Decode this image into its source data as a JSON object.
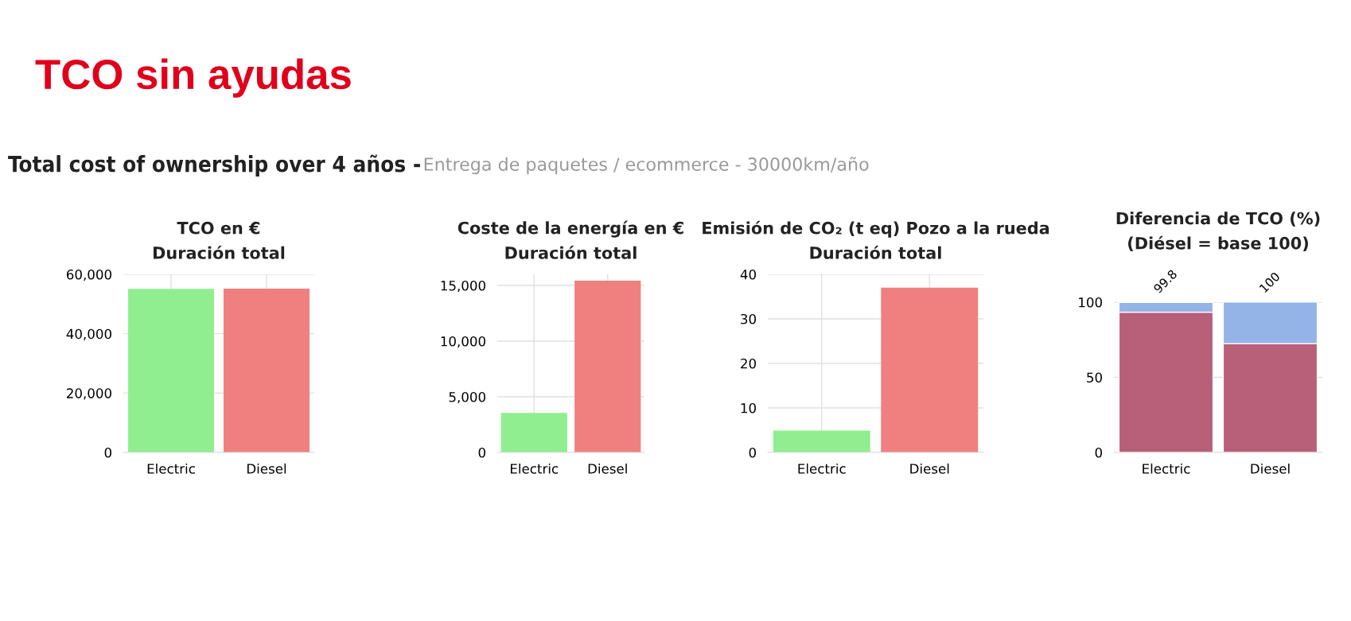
{
  "chart_data": [
    {
      "type": "other",
      "title": "TCO sin ayudas",
      "subtitle": "Total cost of ownership over 4 años -",
      "annotations": [
        "Entrega de paquetes / ecommerce - 30000km/año"
      ]
    },
    {
      "type": "bar",
      "title": "TCO en €\nDuración total",
      "categories": [
        "Electric",
        "Diesel"
      ],
      "values": [
        55100,
        55200
      ],
      "colors": [
        "#90ee90",
        "#f08080"
      ],
      "ylim": [
        0,
        60000
      ],
      "yticks": [
        {
          "value": 0,
          "label": "0"
        },
        {
          "value": 20000,
          "label": "20,000"
        },
        {
          "value": 40000,
          "label": "40,000"
        },
        {
          "value": 60000,
          "label": "60,000"
        }
      ],
      "grid": true
    },
    {
      "type": "bar",
      "title": "Coste de la energía en €\nDuración total",
      "categories": [
        "Electric",
        "Diesel"
      ],
      "values": [
        3560,
        15430
      ],
      "colors": [
        "#90ee90",
        "#f08080"
      ],
      "ylim": [
        0,
        16000
      ],
      "yticks": [
        {
          "value": 0,
          "label": "0"
        },
        {
          "value": 5000,
          "label": "5,000"
        },
        {
          "value": 10000,
          "label": "10,000"
        },
        {
          "value": 15000,
          "label": "15,000"
        }
      ],
      "grid": true
    },
    {
      "type": "bar",
      "title": "Emisión de CO₂ (t eq) Pozo a la rueda\nDuración total",
      "categories": [
        "Electric",
        "Diesel"
      ],
      "values": [
        4.9,
        37.0
      ],
      "colors": [
        "#90ee90",
        "#f08080"
      ],
      "ylim": [
        0,
        40
      ],
      "yticks": [
        0,
        10,
        20,
        30,
        40
      ],
      "grid": true
    },
    {
      "type": "bar",
      "title": "Diferencia de TCO (%)\n(Diésel = base 100)",
      "categories": [
        "Electric",
        "Diesel"
      ],
      "stacked": true,
      "series": [
        {
          "color": "#b85f7a",
          "values": [
            93.3,
            72.4
          ]
        },
        {
          "color": "#94b3e6",
          "values": [
            6.5,
            27.6
          ]
        }
      ],
      "totals": [
        "99.8",
        "100"
      ],
      "ylim": [
        0,
        100
      ],
      "yticks": [
        0,
        50,
        100
      ],
      "grid": "y"
    }
  ]
}
